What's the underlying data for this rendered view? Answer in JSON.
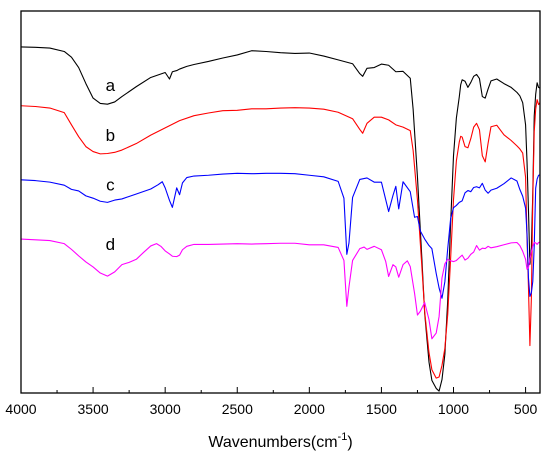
{
  "chart_data": {
    "type": "line",
    "xlabel": "Wavenumbers(cm",
    "xlabel_sup": "-1",
    "xlabel_close": ")",
    "ylabel": "",
    "xlim": [
      4000,
      400
    ],
    "x_reversed": true,
    "y_ticks_shown": false,
    "grid": false,
    "x_ticks": [
      {
        "value": 4000,
        "label": "4000"
      },
      {
        "value": 3500,
        "label": "3500"
      },
      {
        "value": 3000,
        "label": "3000"
      },
      {
        "value": 2500,
        "label": "2500"
      },
      {
        "value": 2000,
        "label": "2000"
      },
      {
        "value": 1500,
        "label": "1500"
      },
      {
        "value": 1000,
        "label": "1000"
      },
      {
        "value": 500,
        "label": "500"
      }
    ],
    "ylim": [
      0,
      100
    ],
    "series": [
      {
        "name": "a",
        "color": "#000000",
        "x": [
          4000,
          3900,
          3800,
          3700,
          3650,
          3600,
          3550,
          3500,
          3450,
          3400,
          3350,
          3300,
          3200,
          3100,
          3000,
          2970,
          2950,
          2920,
          2900,
          2850,
          2800,
          2700,
          2600,
          2500,
          2400,
          2300,
          2200,
          2100,
          2000,
          1900,
          1800,
          1700,
          1650,
          1630,
          1600,
          1550,
          1500,
          1450,
          1400,
          1350,
          1300,
          1280,
          1250,
          1220,
          1200,
          1170,
          1150,
          1120,
          1100,
          1080,
          1060,
          1040,
          1020,
          1000,
          980,
          960,
          950,
          940,
          920,
          900,
          880,
          860,
          840,
          820,
          800,
          780,
          760,
          740,
          700,
          650,
          600,
          560,
          540,
          520,
          500,
          490,
          480,
          470,
          460,
          450,
          440,
          430,
          420,
          410,
          400
        ],
        "y": [
          90.6,
          90.5,
          90.3,
          89.4,
          87.9,
          85.2,
          81.0,
          77.2,
          75.8,
          75.6,
          76.2,
          77.6,
          80.2,
          82.6,
          83.9,
          82.2,
          84.1,
          84.4,
          84.8,
          85.5,
          86.0,
          86.8,
          87.7,
          88.5,
          89.6,
          89.4,
          89.1,
          88.9,
          89.0,
          88.2,
          87.2,
          86.2,
          83.6,
          82.9,
          85.0,
          85.2,
          86.1,
          85.8,
          84.1,
          84.2,
          82.4,
          74.3,
          56.5,
          35.6,
          20.9,
          8.1,
          3.3,
          1.2,
          0.5,
          3.5,
          10.1,
          24.2,
          44.4,
          62.1,
          72.0,
          77.5,
          80.7,
          82.0,
          81.6,
          80.0,
          81.3,
          82.9,
          83.4,
          82.3,
          77.6,
          77.2,
          79.6,
          81.7,
          82.2,
          81.0,
          80.0,
          78.7,
          77.8,
          76.0,
          70.2,
          60.5,
          47.8,
          33.7,
          38.0,
          52.3,
          72.5,
          78.2,
          81.2,
          80.0,
          79.8
        ]
      },
      {
        "name": "b",
        "color": "#ff0000",
        "x": [
          4000,
          3900,
          3800,
          3700,
          3650,
          3600,
          3550,
          3500,
          3450,
          3400,
          3350,
          3300,
          3200,
          3100,
          3000,
          2900,
          2800,
          2700,
          2600,
          2500,
          2400,
          2300,
          2200,
          2100,
          2000,
          1900,
          1800,
          1700,
          1650,
          1630,
          1600,
          1550,
          1500,
          1450,
          1400,
          1350,
          1300,
          1280,
          1250,
          1220,
          1200,
          1170,
          1150,
          1120,
          1100,
          1080,
          1060,
          1040,
          1020,
          1000,
          980,
          960,
          950,
          940,
          920,
          900,
          880,
          860,
          840,
          820,
          800,
          780,
          760,
          740,
          700,
          650,
          600,
          560,
          540,
          520,
          500,
          490,
          480,
          470,
          460,
          450,
          440,
          430,
          420,
          410,
          400
        ],
        "y": [
          75.2,
          75.0,
          74.6,
          73.4,
          70.2,
          67.1,
          64.5,
          63.2,
          62.6,
          62.7,
          63.0,
          63.6,
          65.3,
          67.5,
          69.4,
          71.3,
          72.6,
          73.3,
          73.9,
          74.0,
          74.4,
          74.4,
          74.6,
          74.7,
          74.6,
          74.3,
          73.5,
          71.8,
          69.0,
          68.0,
          70.6,
          72.2,
          72.2,
          71.5,
          70.2,
          69.6,
          68.7,
          63.5,
          50.5,
          33.4,
          21.3,
          10.6,
          6.1,
          3.9,
          4.2,
          7.2,
          11.7,
          20.6,
          35.2,
          50.6,
          60.8,
          65.7,
          67.2,
          67.0,
          64.5,
          64.2,
          66.6,
          69.6,
          70.6,
          68.9,
          62.1,
          60.5,
          65.4,
          69.7,
          70.1,
          67.6,
          66.1,
          64.7,
          63.9,
          62.8,
          56.5,
          40.5,
          27.6,
          12.4,
          24.6,
          50.8,
          68.4,
          74.3,
          76.8,
          75.5,
          76.0
        ]
      },
      {
        "name": "c",
        "color": "#0000ff",
        "x": [
          4000,
          3900,
          3800,
          3700,
          3650,
          3600,
          3550,
          3500,
          3450,
          3400,
          3350,
          3300,
          3200,
          3100,
          3050,
          3020,
          3000,
          2970,
          2950,
          2920,
          2900,
          2880,
          2850,
          2800,
          2700,
          2600,
          2500,
          2400,
          2300,
          2200,
          2100,
          2000,
          1900,
          1800,
          1760,
          1740,
          1725,
          1700,
          1650,
          1600,
          1550,
          1500,
          1470,
          1450,
          1420,
          1400,
          1380,
          1350,
          1300,
          1270,
          1250,
          1230,
          1200,
          1170,
          1150,
          1120,
          1100,
          1080,
          1060,
          1040,
          1020,
          1000,
          980,
          960,
          940,
          920,
          900,
          880,
          860,
          840,
          820,
          800,
          780,
          760,
          740,
          700,
          650,
          600,
          560,
          540,
          520,
          500,
          490,
          480,
          470,
          460,
          450,
          440,
          430,
          420,
          410,
          400
        ],
        "y": [
          55.8,
          55.6,
          55.2,
          54.4,
          53.3,
          52.9,
          51.6,
          51.0,
          50.2,
          49.9,
          50.5,
          50.8,
          52.1,
          53.4,
          54.5,
          55.3,
          53.7,
          50.4,
          48.6,
          53.7,
          51.9,
          55.0,
          56.4,
          56.8,
          57.0,
          57.3,
          57.5,
          57.4,
          57.5,
          57.5,
          57.4,
          57.0,
          56.6,
          55.4,
          51.0,
          36.3,
          39.3,
          51.2,
          55.9,
          56.3,
          55.2,
          55.2,
          50.6,
          47.5,
          51.7,
          54.1,
          48.2,
          55.3,
          52.7,
          46.0,
          46.2,
          42.4,
          40.3,
          38.6,
          37.8,
          31.3,
          27.5,
          24.8,
          29.1,
          37.8,
          45.6,
          48.5,
          49.1,
          49.9,
          50.3,
          52.4,
          53.0,
          52.7,
          53.8,
          54.0,
          53.7,
          54.9,
          53.1,
          52.3,
          53.1,
          53.6,
          54.8,
          56.3,
          55.5,
          53.3,
          51.5,
          48.4,
          41.7,
          30.1,
          25.3,
          26.2,
          29.2,
          38.5,
          53.6,
          56.0,
          57.0,
          57.1
        ]
      },
      {
        "name": "d",
        "color": "#ff00ff",
        "x": [
          4000,
          3900,
          3800,
          3700,
          3650,
          3600,
          3550,
          3500,
          3450,
          3400,
          3350,
          3300,
          3250,
          3200,
          3150,
          3100,
          3060,
          3030,
          3000,
          2970,
          2950,
          2920,
          2900,
          2880,
          2850,
          2800,
          2700,
          2600,
          2500,
          2400,
          2300,
          2200,
          2100,
          2000,
          1900,
          1800,
          1760,
          1740,
          1725,
          1700,
          1650,
          1620,
          1600,
          1550,
          1500,
          1470,
          1450,
          1420,
          1400,
          1380,
          1350,
          1320,
          1300,
          1270,
          1250,
          1230,
          1200,
          1170,
          1150,
          1120,
          1100,
          1080,
          1060,
          1040,
          1020,
          1000,
          980,
          960,
          940,
          920,
          900,
          880,
          860,
          840,
          820,
          800,
          780,
          760,
          740,
          700,
          650,
          600,
          560,
          540,
          520,
          500,
          490,
          480,
          470,
          460,
          450,
          440,
          430,
          420,
          410,
          400
        ],
        "y": [
          40.3,
          40.1,
          39.9,
          39.1,
          37.6,
          35.9,
          34.3,
          33.0,
          31.4,
          30.6,
          31.7,
          33.6,
          34.2,
          35.0,
          36.8,
          38.5,
          39.1,
          38.4,
          37.2,
          36.4,
          35.8,
          35.7,
          36.1,
          37.5,
          38.4,
          38.9,
          38.9,
          39.0,
          39.1,
          39.0,
          39.1,
          39.2,
          39.2,
          38.8,
          38.8,
          38.1,
          34.7,
          22.7,
          27.8,
          34.7,
          37.8,
          38.2,
          37.6,
          38.4,
          37.5,
          34.4,
          30.5,
          33.6,
          33.0,
          30.3,
          33.6,
          34.6,
          33.1,
          26.1,
          20.4,
          21.4,
          23.7,
          19.2,
          14.2,
          15.7,
          20.0,
          30.1,
          33.8,
          35.0,
          34.6,
          34.4,
          34.7,
          35.4,
          36.1,
          34.8,
          35.3,
          36.3,
          36.9,
          38.6,
          37.4,
          37.9,
          37.8,
          38.4,
          38.0,
          38.3,
          38.8,
          39.3,
          39.4,
          38.6,
          37.1,
          35.0,
          32.4,
          32.9,
          34.9,
          37.0,
          38.5,
          39.4,
          39.3,
          38.9,
          39.4,
          39.5
        ]
      }
    ],
    "curve_labels": [
      {
        "text": "a",
        "x": 3380,
        "y": 79.0
      },
      {
        "text": "b",
        "x": 3380,
        "y": 66.0
      },
      {
        "text": "c",
        "x": 3380,
        "y": 53.0
      },
      {
        "text": "d",
        "x": 3380,
        "y": 37.5
      }
    ]
  }
}
